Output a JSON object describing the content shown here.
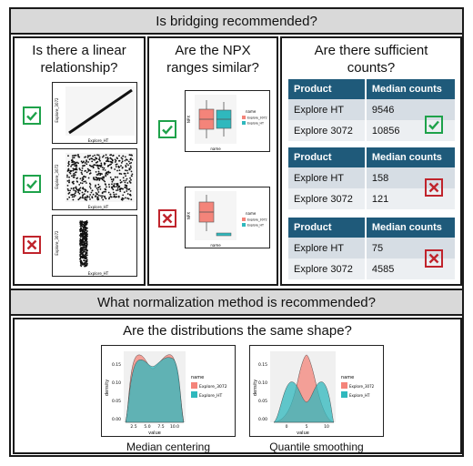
{
  "headers": {
    "bridging": "Is bridging recommended?",
    "normalization": "What normalization method is recommended?"
  },
  "linear": {
    "title": "Is there a linear relationship?",
    "xlabel": "Explore_HT",
    "ylabel": "Explore_3072",
    "results": [
      "check",
      "check",
      "cross"
    ]
  },
  "npx": {
    "title": "Are the NPX ranges similar?",
    "xlabel": "name",
    "ylabel": "NPX",
    "legend_title": "name",
    "legend": [
      "Explore_3072",
      "Explore_HT"
    ],
    "results": [
      "check",
      "cross"
    ]
  },
  "counts": {
    "title": "Are there sufficient counts?",
    "col_product": "Product",
    "col_median": "Median counts",
    "tables": [
      {
        "rows": [
          {
            "product": "Explore HT",
            "median": "9546"
          },
          {
            "product": "Explore 3072",
            "median": "10856"
          }
        ],
        "result": "check"
      },
      {
        "rows": [
          {
            "product": "Explore HT",
            "median": "158"
          },
          {
            "product": "Explore 3072",
            "median": "121"
          }
        ],
        "result": "cross"
      },
      {
        "rows": [
          {
            "product": "Explore HT",
            "median": "75"
          },
          {
            "product": "Explore 3072",
            "median": "4585"
          }
        ],
        "result": "cross"
      }
    ]
  },
  "distributions": {
    "question": "Are the distributions the same shape?",
    "left_caption": "Median centering",
    "right_caption": "Quantile smoothing",
    "xlabel": "value",
    "ylabel": "density",
    "legend_title": "name",
    "legend": [
      "Explore_3072",
      "Explore_HT"
    ],
    "left_yticks": [
      "0.00",
      "0.05",
      "0.10",
      "0.15"
    ],
    "left_xticks": [
      "2.5",
      "5.0",
      "7.5",
      "10.0"
    ],
    "right_yticks": [
      "0.00",
      "0.05",
      "0.10",
      "0.15"
    ],
    "right_xticks": [
      "0",
      "5",
      "10"
    ],
    "colors": {
      "series1": "#f4847a",
      "series2": "#2fb8bd"
    }
  },
  "colors": {
    "check": "#1ea24a",
    "cross": "#c0242c",
    "table_header": "#1f5a7a"
  }
}
